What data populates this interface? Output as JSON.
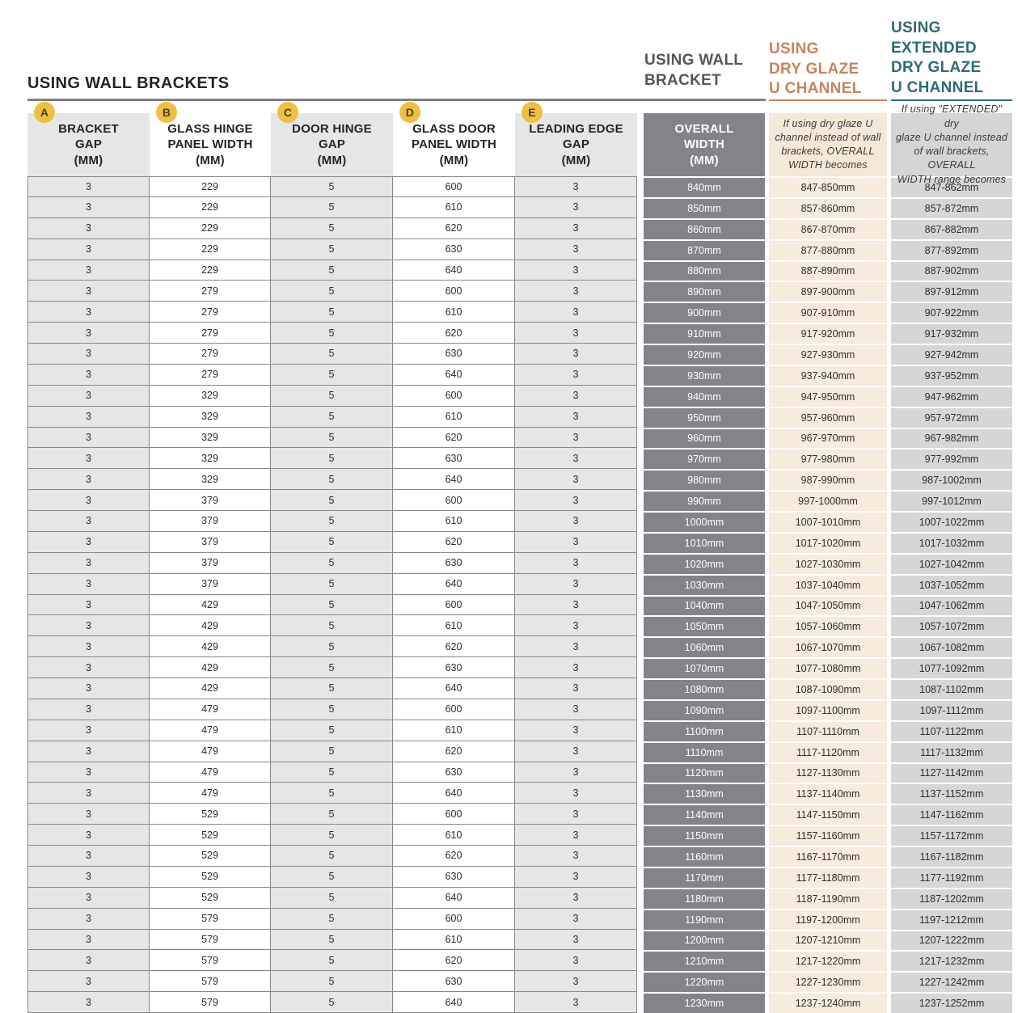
{
  "page_title": "USING WALL BRACKETS",
  "group_headings": {
    "wall_bracket": "USING WALL\nBRACKET",
    "dry_glaze": "USING\nDRY GLAZE\nU CHANNEL",
    "extended_dry_glaze": "USING\nEXTENDED\nDRY GLAZE\nU CHANNEL"
  },
  "colors": {
    "badge_gold": "#efbf3f",
    "dry_glaze_accent": "#c9825d",
    "extended_accent": "#2e6b72",
    "wall_bracket_heading": "#55565a",
    "overall_width_column": "#838488",
    "dry_glaze_column": "#f6ebdd",
    "extended_column": "#d4d6d8",
    "striped_column_gray": "#e5e6e7",
    "grid_border": "#87888a"
  },
  "table": {
    "columns": [
      {
        "badge": "A",
        "label": "BRACKET\nGAP\n(MM)"
      },
      {
        "badge": "B",
        "label": "GLASS HINGE\nPANEL WIDTH\n(MM)"
      },
      {
        "badge": "C",
        "label": "DOOR HINGE\nGAP\n(MM)"
      },
      {
        "badge": "D",
        "label": "GLASS DOOR\nPANEL WIDTH\n(MM)"
      },
      {
        "badge": "E",
        "label": "LEADING EDGE\nGAP\n(MM)"
      },
      {
        "label": "OVERALL\nWIDTH\n(MM)"
      },
      {
        "label": "If using dry glaze U\nchannel instead of wall\nbrackets, OVERALL\nWIDTH becomes"
      },
      {
        "label": "If using \"EXTENDED\" dry\nglaze U channel instead\nof wall brackets, OVERALL\nWIDTH range becomes"
      }
    ],
    "rows": [
      [
        3,
        229,
        5,
        600,
        3,
        "840mm",
        "847-850mm",
        "847-862mm"
      ],
      [
        3,
        229,
        5,
        610,
        3,
        "850mm",
        "857-860mm",
        "857-872mm"
      ],
      [
        3,
        229,
        5,
        620,
        3,
        "860mm",
        "867-870mm",
        "867-882mm"
      ],
      [
        3,
        229,
        5,
        630,
        3,
        "870mm",
        "877-880mm",
        "877-892mm"
      ],
      [
        3,
        229,
        5,
        640,
        3,
        "880mm",
        "887-890mm",
        "887-902mm"
      ],
      [
        3,
        279,
        5,
        600,
        3,
        "890mm",
        "897-900mm",
        "897-912mm"
      ],
      [
        3,
        279,
        5,
        610,
        3,
        "900mm",
        "907-910mm",
        "907-922mm"
      ],
      [
        3,
        279,
        5,
        620,
        3,
        "910mm",
        "917-920mm",
        "917-932mm"
      ],
      [
        3,
        279,
        5,
        630,
        3,
        "920mm",
        "927-930mm",
        "927-942mm"
      ],
      [
        3,
        279,
        5,
        640,
        3,
        "930mm",
        "937-940mm",
        "937-952mm"
      ],
      [
        3,
        329,
        5,
        600,
        3,
        "940mm",
        "947-950mm",
        "947-962mm"
      ],
      [
        3,
        329,
        5,
        610,
        3,
        "950mm",
        "957-960mm",
        "957-972mm"
      ],
      [
        3,
        329,
        5,
        620,
        3,
        "960mm",
        "967-970mm",
        "967-982mm"
      ],
      [
        3,
        329,
        5,
        630,
        3,
        "970mm",
        "977-980mm",
        "977-992mm"
      ],
      [
        3,
        329,
        5,
        640,
        3,
        "980mm",
        "987-990mm",
        "987-1002mm"
      ],
      [
        3,
        379,
        5,
        600,
        3,
        "990mm",
        "997-1000mm",
        "997-1012mm"
      ],
      [
        3,
        379,
        5,
        610,
        3,
        "1000mm",
        "1007-1010mm",
        "1007-1022mm"
      ],
      [
        3,
        379,
        5,
        620,
        3,
        "1010mm",
        "1017-1020mm",
        "1017-1032mm"
      ],
      [
        3,
        379,
        5,
        630,
        3,
        "1020mm",
        "1027-1030mm",
        "1027-1042mm"
      ],
      [
        3,
        379,
        5,
        640,
        3,
        "1030mm",
        "1037-1040mm",
        "1037-1052mm"
      ],
      [
        3,
        429,
        5,
        600,
        3,
        "1040mm",
        "1047-1050mm",
        "1047-1062mm"
      ],
      [
        3,
        429,
        5,
        610,
        3,
        "1050mm",
        "1057-1060mm",
        "1057-1072mm"
      ],
      [
        3,
        429,
        5,
        620,
        3,
        "1060mm",
        "1067-1070mm",
        "1067-1082mm"
      ],
      [
        3,
        429,
        5,
        630,
        3,
        "1070mm",
        "1077-1080mm",
        "1077-1092mm"
      ],
      [
        3,
        429,
        5,
        640,
        3,
        "1080mm",
        "1087-1090mm",
        "1087-1102mm"
      ],
      [
        3,
        479,
        5,
        600,
        3,
        "1090mm",
        "1097-1100mm",
        "1097-1112mm"
      ],
      [
        3,
        479,
        5,
        610,
        3,
        "1100mm",
        "1107-1110mm",
        "1107-1122mm"
      ],
      [
        3,
        479,
        5,
        620,
        3,
        "1110mm",
        "1117-1120mm",
        "1117-1132mm"
      ],
      [
        3,
        479,
        5,
        630,
        3,
        "1120mm",
        "1127-1130mm",
        "1127-1142mm"
      ],
      [
        3,
        479,
        5,
        640,
        3,
        "1130mm",
        "1137-1140mm",
        "1137-1152mm"
      ],
      [
        3,
        529,
        5,
        600,
        3,
        "1140mm",
        "1147-1150mm",
        "1147-1162mm"
      ],
      [
        3,
        529,
        5,
        610,
        3,
        "1150mm",
        "1157-1160mm",
        "1157-1172mm"
      ],
      [
        3,
        529,
        5,
        620,
        3,
        "1160mm",
        "1167-1170mm",
        "1167-1182mm"
      ],
      [
        3,
        529,
        5,
        630,
        3,
        "1170mm",
        "1177-1180mm",
        "1177-1192mm"
      ],
      [
        3,
        529,
        5,
        640,
        3,
        "1180mm",
        "1187-1190mm",
        "1187-1202mm"
      ],
      [
        3,
        579,
        5,
        600,
        3,
        "1190mm",
        "1197-1200mm",
        "1197-1212mm"
      ],
      [
        3,
        579,
        5,
        610,
        3,
        "1200mm",
        "1207-1210mm",
        "1207-1222mm"
      ],
      [
        3,
        579,
        5,
        620,
        3,
        "1210mm",
        "1217-1220mm",
        "1217-1232mm"
      ],
      [
        3,
        579,
        5,
        630,
        3,
        "1220mm",
        "1227-1230mm",
        "1227-1242mm"
      ],
      [
        3,
        579,
        5,
        640,
        3,
        "1230mm",
        "1237-1240mm",
        "1237-1252mm"
      ]
    ]
  }
}
